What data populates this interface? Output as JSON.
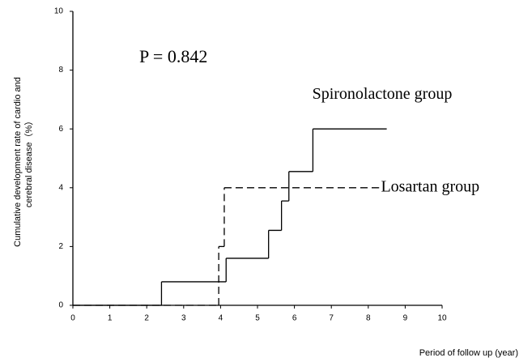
{
  "chart_data": {
    "type": "step",
    "x_label": "Period of follow up (year)",
    "y_label": [
      "Cumulative development rate of cardio and",
      "cerebral disease（%）"
    ],
    "xlim": [
      0,
      10
    ],
    "xticks": [
      0,
      1,
      2,
      3,
      4,
      5,
      6,
      7,
      8,
      9,
      10
    ],
    "ylim": [
      0,
      10
    ],
    "yticks": [
      0,
      2,
      4,
      6,
      8,
      10
    ],
    "annotation": "P = 0.842",
    "series": [
      {
        "name": "Spironolactone group",
        "color": "#000000",
        "dash": false,
        "x": [
          0,
          2.4,
          4.15,
          5.3,
          5.65,
          5.85,
          6.5,
          8.5
        ],
        "values": [
          0,
          0.8,
          1.6,
          2.55,
          3.55,
          4.55,
          6,
          6
        ]
      },
      {
        "name": "Losartan group",
        "color": "#000000",
        "dash": true,
        "x": [
          0,
          3.95,
          4.1,
          8.3
        ],
        "values": [
          0,
          2,
          4,
          4
        ]
      }
    ]
  }
}
